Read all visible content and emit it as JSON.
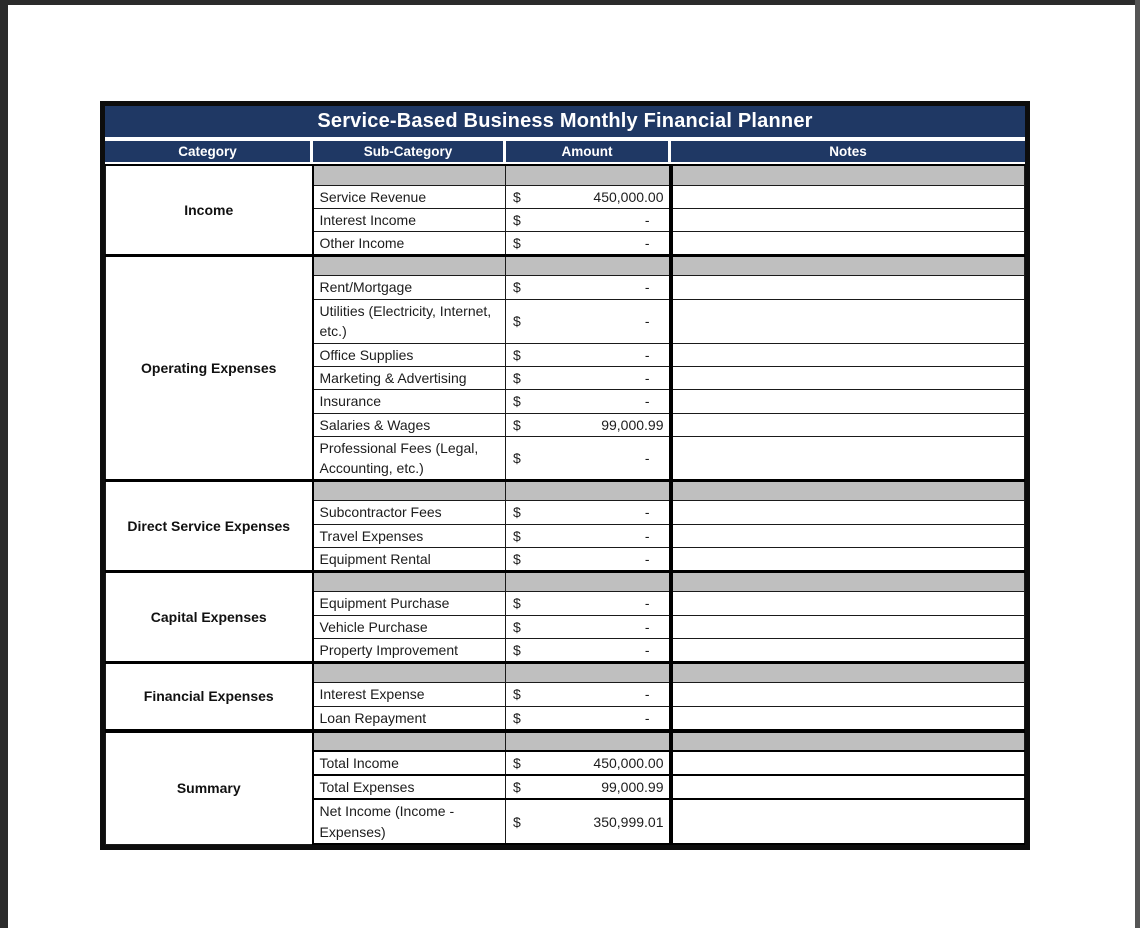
{
  "page": {
    "title": "Service-Based Business Monthly Financial Planner"
  },
  "table": {
    "currency": "$",
    "headers": [
      "Category",
      "Sub-Category",
      "Amount",
      "Notes"
    ],
    "colors": {
      "header_navy": "#1f3864",
      "spacer_gray": "#bfbfbf",
      "border_black": "#000000",
      "text_ink": "#1c1c1c"
    },
    "sections": [
      {
        "category": "Income",
        "rows": [
          {
            "sub": "Service Revenue",
            "amount": "450,000.00"
          },
          {
            "sub": "Interest Income",
            "amount": "-"
          },
          {
            "sub": "Other Income",
            "amount": "-"
          }
        ]
      },
      {
        "category": "Operating Expenses",
        "rows": [
          {
            "sub": "Rent/Mortgage",
            "amount": "-"
          },
          {
            "sub": "Utilities (Electricity, Internet, etc.)",
            "amount": "-"
          },
          {
            "sub": "Office Supplies",
            "amount": "-"
          },
          {
            "sub": "Marketing & Advertising",
            "amount": "-"
          },
          {
            "sub": "Insurance",
            "amount": "-"
          },
          {
            "sub": "Salaries & Wages",
            "amount": "99,000.99"
          },
          {
            "sub": "Professional Fees (Legal, Accounting, etc.)",
            "amount": "-"
          }
        ]
      },
      {
        "category": "Direct Service Expenses",
        "rows": [
          {
            "sub": "Subcontractor Fees",
            "amount": "-"
          },
          {
            "sub": "Travel Expenses",
            "amount": "-"
          },
          {
            "sub": "Equipment Rental",
            "amount": "-"
          }
        ]
      },
      {
        "category": "Capital Expenses",
        "rows": [
          {
            "sub": "Equipment Purchase",
            "amount": "-"
          },
          {
            "sub": "Vehicle Purchase",
            "amount": "-"
          },
          {
            "sub": "Property Improvement",
            "amount": "-"
          }
        ]
      },
      {
        "category": "Financial Expenses",
        "rows": [
          {
            "sub": "Interest Expense",
            "amount": "-"
          },
          {
            "sub": "Loan Repayment",
            "amount": "-"
          }
        ]
      },
      {
        "category": "Summary",
        "rows": [
          {
            "sub": "Total Income",
            "amount": "450,000.00"
          },
          {
            "sub": "Total Expenses",
            "amount": "99,000.99"
          },
          {
            "sub": "Net Income (Income - Expenses)",
            "amount": "350,999.01"
          }
        ]
      }
    ]
  }
}
